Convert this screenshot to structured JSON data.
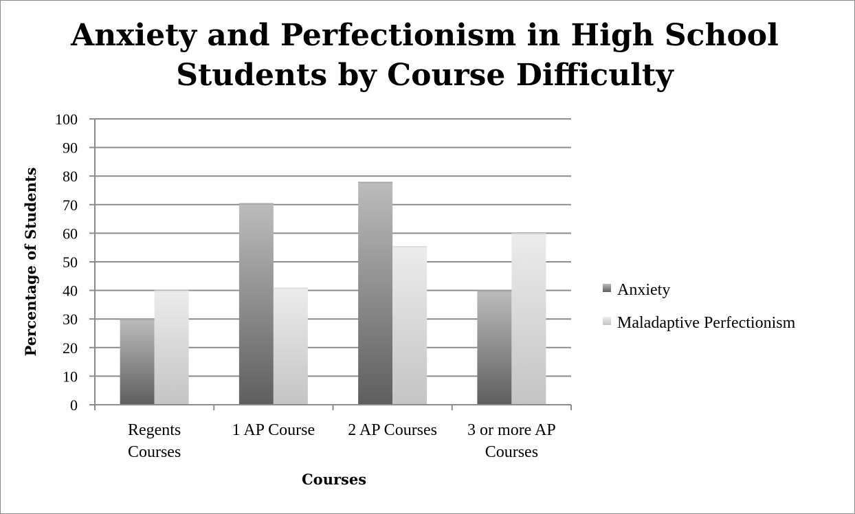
{
  "chart_data": {
    "type": "bar",
    "title_lines": [
      "Anxiety and Perfectionism in High School",
      "Students by Course Difficulty"
    ],
    "xlabel": "Courses",
    "ylabel": "Percentage of Students",
    "ylim": [
      0,
      100
    ],
    "y_ticks": [
      0,
      10,
      20,
      30,
      40,
      50,
      60,
      70,
      80,
      90,
      100
    ],
    "grid": true,
    "legend_position": "right",
    "categories": [
      [
        "Regents",
        "Courses"
      ],
      [
        "1 AP Course"
      ],
      [
        "2 AP Courses"
      ],
      [
        "3 or more AP",
        "Courses"
      ]
    ],
    "series": [
      {
        "name": "Anxiety",
        "values": [
          30,
          70.5,
          78,
          40
        ],
        "color_light": "#bcbcbc",
        "color_dark": "#5e5e5e"
      },
      {
        "name": "Maladaptive Perfectionism",
        "values": [
          40,
          41,
          55.5,
          60
        ],
        "color_light": "#ececec",
        "color_dark": "#c4c4c4"
      }
    ]
  }
}
